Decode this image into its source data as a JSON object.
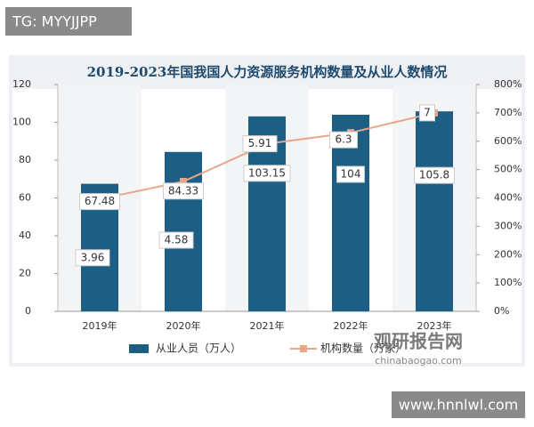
{
  "watermarks": {
    "top": "TG: MYYJJPP",
    "logo": "观研报告网",
    "logo_url": "chinabaogao.com",
    "bottom": "www.hnnlwl.com"
  },
  "chart_data": {
    "type": "bar-line",
    "title": "2019-2023年国我国人力资源服务机构数量及从业人数情况",
    "categories": [
      "2019年",
      "2020年",
      "2021年",
      "2022年",
      "2023年"
    ],
    "series": [
      {
        "name": "从业人员（万人）",
        "type": "bar",
        "color": "#1d5f84",
        "values": [
          67.48,
          84.33,
          103.15,
          104,
          105.8
        ]
      },
      {
        "name": "机构数量（万家）",
        "type": "line",
        "axis": "y2",
        "color": "#e9a58a",
        "values": [
          3.96,
          4.58,
          5.91,
          6.3,
          7
        ]
      }
    ],
    "ylim": [
      0,
      120
    ],
    "yticks": [
      0,
      20,
      40,
      60,
      80,
      100,
      120
    ],
    "y2lim": [
      0,
      8
    ],
    "y2ticks": [
      {
        "value": 0,
        "label": "0%"
      },
      {
        "value": 1,
        "label": "100%"
      },
      {
        "value": 2,
        "label": "200%"
      },
      {
        "value": 3,
        "label": "300%"
      },
      {
        "value": 4,
        "label": "400%"
      },
      {
        "value": 5,
        "label": "500%"
      },
      {
        "value": 6,
        "label": "600%"
      },
      {
        "value": 7,
        "label": "700%"
      },
      {
        "value": 8,
        "label": "800%"
      }
    ],
    "grid": false,
    "legend": "bottom"
  }
}
